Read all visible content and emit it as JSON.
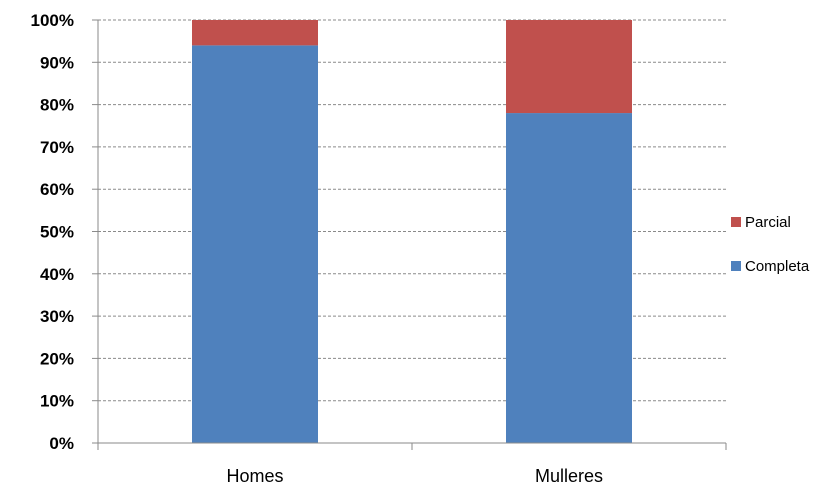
{
  "chart_data": {
    "type": "bar",
    "stacked": true,
    "percent": true,
    "categories": [
      "Homes",
      "Mulleres"
    ],
    "series": [
      {
        "name": "Completa",
        "values": [
          94,
          78
        ],
        "color": "#4F81BD"
      },
      {
        "name": "Parcial",
        "values": [
          6,
          22
        ],
        "color": "#C0504D"
      }
    ],
    "ylim": [
      0,
      100
    ],
    "yticks": [
      "0%",
      "10%",
      "20%",
      "30%",
      "40%",
      "50%",
      "60%",
      "70%",
      "80%",
      "90%",
      "100%"
    ],
    "grid": true,
    "grid_style": "dashed",
    "legend": {
      "position": "right",
      "entries": [
        "Parcial",
        "Completa"
      ]
    },
    "title": "",
    "xlabel": "",
    "ylabel": ""
  }
}
